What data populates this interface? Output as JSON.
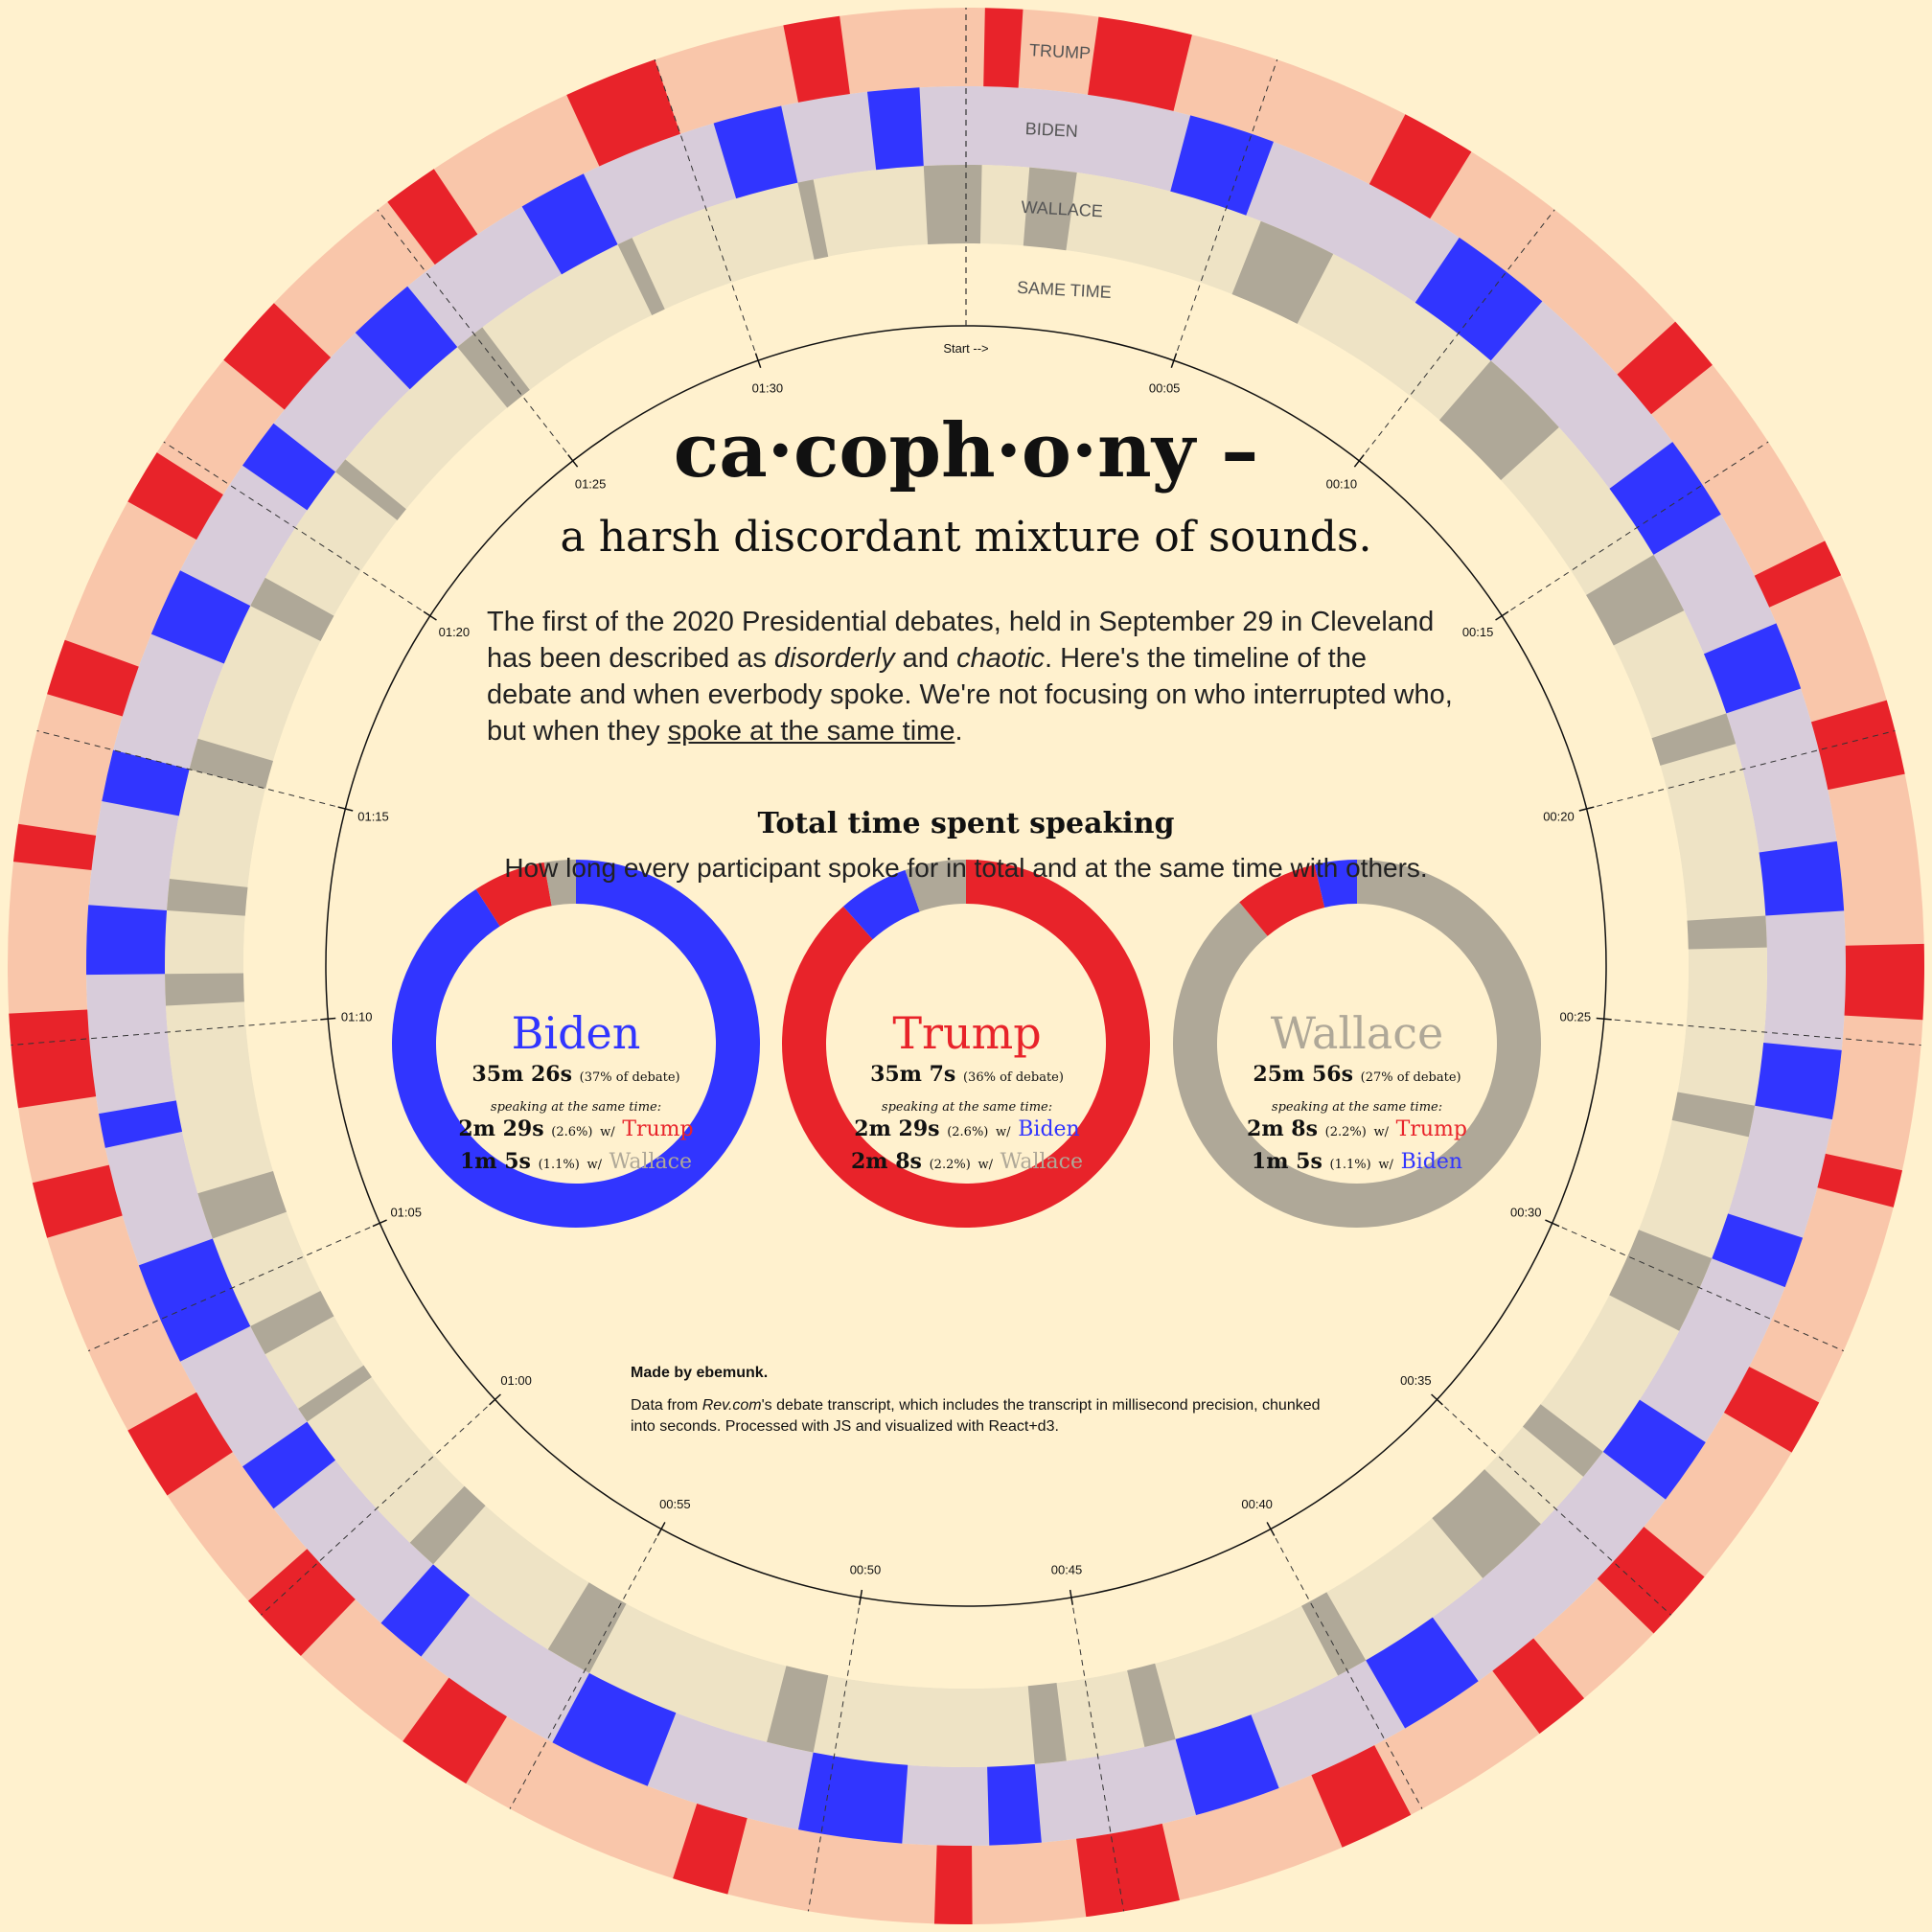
{
  "title": "ca·coph·o·ny –",
  "subtitle": "a harsh discordant mixture of sounds.",
  "intro": {
    "text_1": "The first of the 2020 Presidential debates, held in September 29 in Cleveland has been described as ",
    "em_1": "disorderly",
    "text_2": " and ",
    "em_2": "chaotic",
    "text_3": ". Here's the timeline of the debate and when everbody spoke. We're not focusing on who interrupted who, but when they ",
    "link": "spoke at the same time",
    "text_4": "."
  },
  "totals": {
    "title": "Total time spent speaking",
    "subtitle": "How long every participant spoke for in total and at the same time with others."
  },
  "colors": {
    "background": "#FFF1CE",
    "trump": "#E8232A",
    "trump_ring_bg": "#F9C6AA",
    "biden": "#3135FF",
    "biden_ring_bg": "#D8CCDA",
    "wallace": "#AFA898",
    "wallace_ring_bg": "#EEE3C5",
    "sametime_ring_bg": "#FFF1CE"
  },
  "chart_data": [
    {
      "type": "radial-timeline",
      "rings": [
        "TRUMP",
        "BIDEN",
        "WALLACE",
        "SAME TIME"
      ],
      "start_label": "Start -->",
      "ticks": [
        "00:05",
        "00:10",
        "00:15",
        "00:20",
        "00:25",
        "00:30",
        "00:35",
        "00:40",
        "00:45",
        "00:50",
        "00:55",
        "01:00",
        "01:05",
        "01:10",
        "01:15",
        "01:20",
        "01:25",
        "01:30"
      ],
      "duration_minutes": 95,
      "segments": {
        "trump": [
          [
            0.3,
            0.9
          ],
          [
            2.1,
            3.6
          ],
          [
            7.2,
            8.4
          ],
          [
            12.6,
            13.5
          ],
          [
            16.8,
            17.4
          ],
          [
            19.5,
            20.7
          ],
          [
            23.4,
            24.6
          ],
          [
            27.0,
            27.6
          ],
          [
            30.9,
            31.8
          ],
          [
            34.2,
            35.4
          ],
          [
            36.9,
            37.8
          ],
          [
            40.2,
            41.4
          ],
          [
            44.1,
            45.6
          ],
          [
            47.4,
            48.0
          ],
          [
            51.3,
            52.2
          ],
          [
            55.8,
            57.0
          ],
          [
            59.1,
            60.3
          ],
          [
            62.4,
            63.6
          ],
          [
            66.9,
            67.8
          ],
          [
            69.0,
            70.5
          ],
          [
            72.9,
            73.5
          ],
          [
            75.6,
            76.5
          ],
          [
            78.9,
            79.8
          ],
          [
            81.6,
            82.8
          ],
          [
            85.2,
            86.1
          ],
          [
            88.5,
            90.0
          ],
          [
            92.1,
            93.0
          ]
        ],
        "biden": [
          [
            3.9,
            5.4
          ],
          [
            9.0,
            10.8
          ],
          [
            14.1,
            15.6
          ],
          [
            17.7,
            18.9
          ],
          [
            21.6,
            22.8
          ],
          [
            25.2,
            26.4
          ],
          [
            28.5,
            29.4
          ],
          [
            32.4,
            33.6
          ],
          [
            38.1,
            39.6
          ],
          [
            42.0,
            43.5
          ],
          [
            46.2,
            47.1
          ],
          [
            48.6,
            50.4
          ],
          [
            53.1,
            54.9
          ],
          [
            57.6,
            58.5
          ],
          [
            61.2,
            62.1
          ],
          [
            64.2,
            66.0
          ],
          [
            68.1,
            68.7
          ],
          [
            71.1,
            72.3
          ],
          [
            74.1,
            75.0
          ],
          [
            77.1,
            78.3
          ],
          [
            80.4,
            81.3
          ],
          [
            83.4,
            84.6
          ],
          [
            87.0,
            88.2
          ],
          [
            90.6,
            91.8
          ],
          [
            93.3,
            94.2
          ]
        ],
        "wallace": [
          [
            0.0,
            0.3
          ],
          [
            1.2,
            2.1
          ],
          [
            5.7,
            7.2
          ],
          [
            10.8,
            12.6
          ],
          [
            15.6,
            16.8
          ],
          [
            18.9,
            19.5
          ],
          [
            22.8,
            23.4
          ],
          [
            26.4,
            27.0
          ],
          [
            29.4,
            30.9
          ],
          [
            33.6,
            34.2
          ],
          [
            35.4,
            36.9
          ],
          [
            39.6,
            40.2
          ],
          [
            43.5,
            44.1
          ],
          [
            45.6,
            46.2
          ],
          [
            50.4,
            51.3
          ],
          [
            54.9,
            55.8
          ],
          [
            58.5,
            59.1
          ],
          [
            62.1,
            62.4
          ],
          [
            63.6,
            64.2
          ],
          [
            66.0,
            66.9
          ],
          [
            70.5,
            71.1
          ],
          [
            72.3,
            72.9
          ],
          [
            75.0,
            75.6
          ],
          [
            78.3,
            78.9
          ],
          [
            81.3,
            81.6
          ],
          [
            84.6,
            85.2
          ],
          [
            88.2,
            88.5
          ],
          [
            91.8,
            92.1
          ],
          [
            94.2,
            95.0
          ]
        ]
      }
    },
    {
      "type": "pie",
      "name": "Biden",
      "total": "35m 26s",
      "total_pct": "(37% of debate)",
      "sametime_label": "speaking at the same time:",
      "overlaps": [
        {
          "time": "2m 29s",
          "pct": "(2.6%)",
          "with": "Trump",
          "color": "#E8232A"
        },
        {
          "time": "1m 5s",
          "pct": "(1.1%)",
          "with": "Wallace",
          "color": "#AFA898"
        }
      ],
      "slices": [
        {
          "label": "Biden",
          "seconds": 2126,
          "color": "#3135FF"
        },
        {
          "label": "Trump",
          "seconds": 149,
          "color": "#E8232A"
        },
        {
          "label": "Wallace",
          "seconds": 65,
          "color": "#AFA898"
        }
      ]
    },
    {
      "type": "pie",
      "name": "Trump",
      "total": "35m 7s",
      "total_pct": "(36% of debate)",
      "sametime_label": "speaking at the same time:",
      "overlaps": [
        {
          "time": "2m 29s",
          "pct": "(2.6%)",
          "with": "Biden",
          "color": "#3135FF"
        },
        {
          "time": "2m 8s",
          "pct": "(2.2%)",
          "with": "Wallace",
          "color": "#AFA898"
        }
      ],
      "slices": [
        {
          "label": "Trump",
          "seconds": 2107,
          "color": "#E8232A"
        },
        {
          "label": "Biden",
          "seconds": 149,
          "color": "#3135FF"
        },
        {
          "label": "Wallace",
          "seconds": 128,
          "color": "#AFA898"
        }
      ]
    },
    {
      "type": "pie",
      "name": "Wallace",
      "total": "25m 56s",
      "total_pct": "(27% of debate)",
      "sametime_label": "speaking at the same time:",
      "overlaps": [
        {
          "time": "2m 8s",
          "pct": "(2.2%)",
          "with": "Trump",
          "color": "#E8232A"
        },
        {
          "time": "1m 5s",
          "pct": "(1.1%)",
          "with": "Biden",
          "color": "#3135FF"
        }
      ],
      "slices": [
        {
          "label": "Wallace",
          "seconds": 1556,
          "color": "#AFA898"
        },
        {
          "label": "Trump",
          "seconds": 128,
          "color": "#E8232A"
        },
        {
          "label": "Biden",
          "seconds": 65,
          "color": "#3135FF"
        }
      ]
    }
  ],
  "credits": {
    "made_by": "Made by ebemunk.",
    "data_prefix": "Data from ",
    "data_source": "Rev.com",
    "data_rest": "'s debate transcript, which includes the transcript in millisecond precision, chunked into seconds. Processed with JS and visualized with React+d3."
  }
}
